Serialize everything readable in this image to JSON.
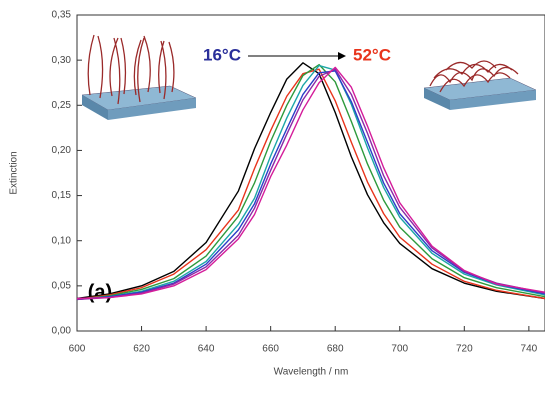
{
  "chart_data": {
    "type": "line",
    "x_label": "Wavelength / nm",
    "y_label": "Extinction",
    "annotations": [
      "16°C",
      "52°C",
      "(a)"
    ],
    "x": [
      600,
      610,
      620,
      630,
      640,
      650,
      655,
      660,
      665,
      670,
      675,
      680,
      685,
      690,
      695,
      700,
      710,
      720,
      730,
      745
    ],
    "series": [
      {
        "color": "#000000",
        "values": [
          0.036,
          0.041,
          0.05,
          0.066,
          0.098,
          0.155,
          0.202,
          0.242,
          0.279,
          0.297,
          0.285,
          0.242,
          0.193,
          0.151,
          0.12,
          0.097,
          0.069,
          0.053,
          0.044,
          0.036
        ]
      },
      {
        "color": "#e8341c",
        "values": [
          0.035,
          0.04,
          0.048,
          0.063,
          0.09,
          0.134,
          0.18,
          0.222,
          0.26,
          0.285,
          0.29,
          0.255,
          0.209,
          0.165,
          0.13,
          0.104,
          0.074,
          0.055,
          0.045,
          0.036
        ]
      },
      {
        "color": "#2e9a3c",
        "values": [
          0.035,
          0.039,
          0.046,
          0.058,
          0.083,
          0.127,
          0.164,
          0.21,
          0.25,
          0.283,
          0.295,
          0.276,
          0.232,
          0.185,
          0.145,
          0.115,
          0.08,
          0.059,
          0.048,
          0.038
        ]
      },
      {
        "color": "#1ca6a8",
        "values": [
          0.035,
          0.038,
          0.044,
          0.055,
          0.077,
          0.118,
          0.147,
          0.194,
          0.236,
          0.272,
          0.294,
          0.289,
          0.251,
          0.203,
          0.159,
          0.126,
          0.086,
          0.063,
          0.051,
          0.04
        ]
      },
      {
        "color": "#2a3fc8",
        "values": [
          0.035,
          0.038,
          0.043,
          0.053,
          0.074,
          0.112,
          0.141,
          0.185,
          0.224,
          0.262,
          0.286,
          0.288,
          0.254,
          0.209,
          0.164,
          0.13,
          0.089,
          0.065,
          0.052,
          0.041
        ]
      },
      {
        "color": "#8a2aa8",
        "values": [
          0.035,
          0.037,
          0.042,
          0.052,
          0.071,
          0.106,
          0.136,
          0.178,
          0.218,
          0.256,
          0.282,
          0.29,
          0.262,
          0.219,
          0.172,
          0.137,
          0.092,
          0.066,
          0.053,
          0.042
        ]
      },
      {
        "color": "#d41c9a",
        "values": [
          0.036,
          0.037,
          0.041,
          0.05,
          0.068,
          0.102,
          0.129,
          0.171,
          0.206,
          0.245,
          0.275,
          0.292,
          0.27,
          0.227,
          0.181,
          0.142,
          0.094,
          0.067,
          0.052,
          0.043
        ]
      }
    ],
    "xlim": [
      600,
      745
    ],
    "xticks": [
      600,
      620,
      640,
      660,
      680,
      700,
      720,
      740
    ],
    "ylim": [
      0,
      0.35
    ],
    "yticks": [
      {
        "value": 0,
        "label": "0,00"
      },
      {
        "value": 0.05,
        "label": "0,05"
      },
      {
        "value": 0.1,
        "label": "0,10"
      },
      {
        "value": 0.15,
        "label": "0,15"
      },
      {
        "value": 0.2,
        "label": "0,20"
      },
      {
        "value": 0.25,
        "label": "0,25"
      },
      {
        "value": 0.3,
        "label": "0,30"
      },
      {
        "value": 0.35,
        "label": "0,35"
      }
    ],
    "grid": false
  }
}
